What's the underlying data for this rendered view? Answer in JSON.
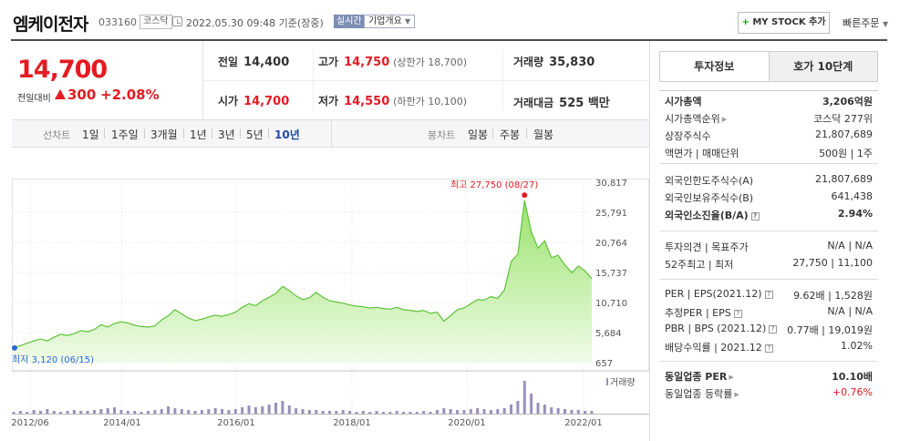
{
  "header": {
    "name": "엠케이전자",
    "code": "033160",
    "market": "코스닥",
    "date": "2022.05.30 09:48 기준(장중)",
    "realtime_badge": "실시간",
    "corp_overview": "기업개요",
    "mystock_label": "MY STOCK 추가",
    "quick_order": "빠른주문"
  },
  "price": {
    "current": "14,700",
    "diff_label": "전일대비",
    "diff": "300",
    "rate": "+2.08%"
  },
  "quote": {
    "prev_label": "전일",
    "prev": "14,400",
    "open_label": "시가",
    "open": "14,700",
    "high_label": "고가",
    "high": "14,750",
    "upper_limit": "(상한가 18,700)",
    "low_label": "저가",
    "low": "14,550",
    "lower_limit": "(하한가 10,100)",
    "volume_label": "거래량",
    "volume": "35,830",
    "amount_label": "거래대금",
    "amount": "525 백만"
  },
  "tabs": {
    "line_label": "선차트",
    "line_tabs": [
      "1일",
      "1주일",
      "3개월",
      "1년",
      "3년",
      "5년",
      "10년"
    ],
    "selected": "10년",
    "candle_label": "봉차트",
    "candle_tabs": [
      "일봉",
      "주봉",
      "월봉"
    ]
  },
  "chart_data": {
    "type": "area",
    "title": "",
    "x_ticks": [
      "2012/06",
      "2014/01",
      "2016/01",
      "2018/01",
      "2020/01",
      "2022/01"
    ],
    "y_ticks": [
      "30,817",
      "25,791",
      "20,764",
      "15,737",
      "10,710",
      "5,684",
      "657"
    ],
    "ylim": [
      657,
      30817
    ],
    "high_label": "최고 27,750 (08/27)",
    "low_label": "최저 3,120 (06/15)",
    "volume_legend": "거래량",
    "series": [
      {
        "values": [
          3120,
          3500,
          3900,
          4300,
          4600,
          4300,
          4900,
          5400,
          5200,
          5500,
          6000,
          5800,
          6200,
          7000,
          6600,
          7200,
          7500,
          7300,
          6900,
          6700,
          6600,
          6800,
          7800,
          8500,
          9500,
          8800,
          8100,
          7700,
          7900,
          8300,
          8600,
          8400,
          8700,
          9100,
          9900,
          10500,
          10200,
          11000,
          11600,
          12200,
          13400,
          12700,
          11800,
          11200,
          11500,
          12400,
          11600,
          11000,
          10800,
          10600,
          10300,
          10100,
          10000,
          9800,
          9900,
          9700,
          9600,
          9900,
          9500,
          9400,
          9200,
          9400,
          8900,
          9100,
          7600,
          8500,
          9500,
          9800,
          10500,
          11200,
          11100,
          11700,
          11400,
          12800,
          17500,
          18800,
          27750,
          22500,
          19800,
          21000,
          18200,
          18600,
          17000,
          15700,
          16800,
          16000,
          14700
        ]
      }
    ],
    "volume_values": [
      2,
      3,
      2,
      4,
      3,
      5,
      3,
      2,
      3,
      4,
      3,
      3,
      4,
      5,
      6,
      7,
      4,
      3,
      3,
      2,
      3,
      4,
      5,
      8,
      6,
      5,
      4,
      3,
      4,
      5,
      6,
      5,
      4,
      5,
      7,
      9,
      7,
      8,
      10,
      12,
      14,
      9,
      6,
      5,
      4,
      4,
      3,
      3,
      3,
      4,
      3,
      2,
      3,
      2,
      3,
      2,
      2,
      3,
      2,
      2,
      2,
      3,
      2,
      4,
      6,
      5,
      4,
      4,
      5,
      6,
      5,
      4,
      5,
      6,
      10,
      14,
      36,
      22,
      12,
      10,
      7,
      6,
      5,
      4,
      4,
      3,
      3
    ]
  },
  "invest": {
    "tab_invest": "투자정보",
    "tab_quote": "호가 10단계",
    "group1": [
      {
        "k": "시가총액",
        "v": "3,206억원",
        "kb": true,
        "vb": true
      },
      {
        "k": "시가총액순위",
        "v": "코스닥 277위",
        "arrow": true
      },
      {
        "k": "상장주식수",
        "v": "21,807,689"
      },
      {
        "k": "액면가 | 매매단위",
        "v": "500원 | 1주"
      }
    ],
    "group2": [
      {
        "k": "외국인한도주식수(A)",
        "v": "21,807,689"
      },
      {
        "k": "외국인보유주식수(B)",
        "v": "641,438"
      },
      {
        "k": "외국인소진율(B/A)",
        "v": "2.94%",
        "kb": true,
        "vb": true,
        "q": true
      }
    ],
    "group3": [
      {
        "k": "투자의견 | 목표주가",
        "v": "N/A | N/A"
      },
      {
        "k": "52주최고 | 최저",
        "v": "27,750 | 11,100"
      }
    ],
    "group4": [
      {
        "k": "PER | EPS(2021.12)",
        "v": "9.62배 | 1,528원",
        "q": true
      },
      {
        "k": "추정PER | EPS",
        "v": "N/A | N/A",
        "q": true
      },
      {
        "k": "PBR | BPS (2021.12)",
        "v": "0.77배 | 19,019원",
        "q": true
      },
      {
        "k": "배당수익률 | 2021.12",
        "v": "1.02%",
        "q": true
      }
    ],
    "group5": [
      {
        "k": "동일업종 PER",
        "v": "10.10배",
        "kb": true,
        "vb": true,
        "arrow": true
      },
      {
        "k": "동일업종 등락률",
        "v": "+0.76%",
        "red": true,
        "arrow": true
      }
    ]
  }
}
